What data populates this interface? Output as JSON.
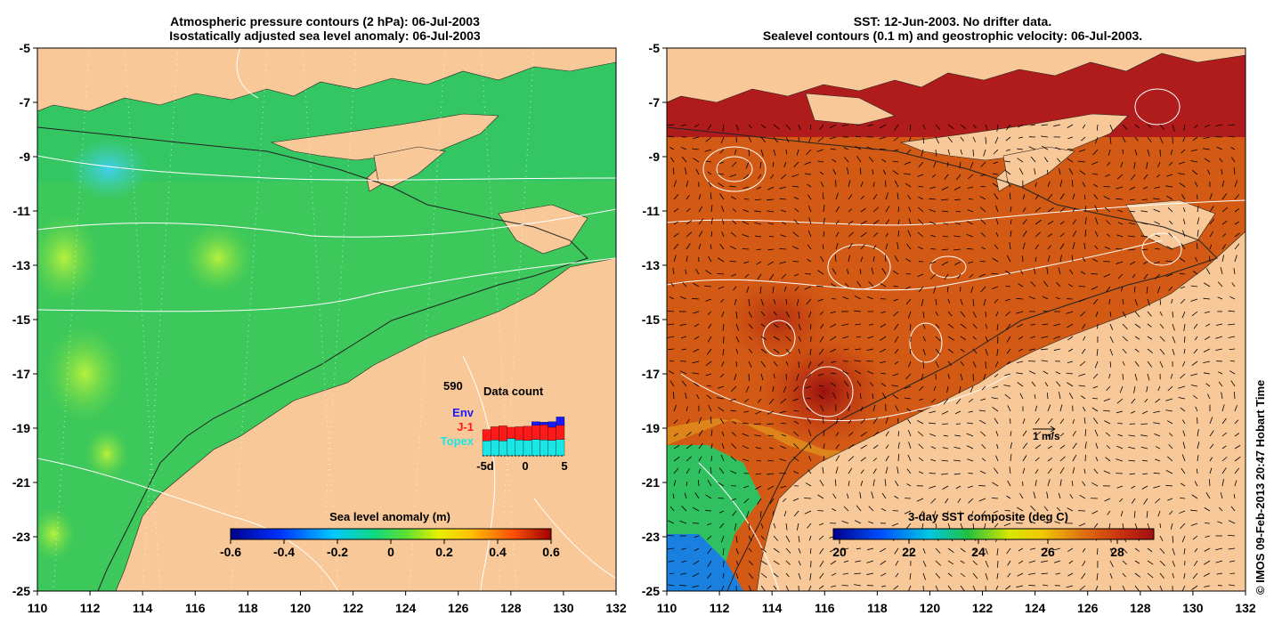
{
  "left_panel": {
    "title_line1": "Atmospheric pressure contours (2 hPa): 06-Jul-2003",
    "title_line2": "Isostatically adjusted sea level anomaly: 06-Jul-2003",
    "x_ticks": [
      "110",
      "112",
      "114",
      "116",
      "118",
      "120",
      "122",
      "124",
      "126",
      "128",
      "130",
      "132"
    ],
    "y_ticks": [
      "-5",
      "-7",
      "-9",
      "-11",
      "-13",
      "-15",
      "-17",
      "-19",
      "-21",
      "-23",
      "-25"
    ],
    "colorbar": {
      "label": "Sea level anomaly (m)",
      "ticks": [
        "-0.6",
        "-0.4",
        "-0.2",
        "0",
        "0.2",
        "0.4",
        "0.6"
      ]
    },
    "data_count": {
      "title": "Data count",
      "max_value": "590",
      "legend": [
        {
          "name": "Env",
          "color": "#1a1aff"
        },
        {
          "name": "J-1",
          "color": "#ff1a1a"
        },
        {
          "name": "Topex",
          "color": "#1ae6e6"
        }
      ],
      "x_ticks": [
        "-5d",
        "0",
        "5"
      ],
      "series": {
        "topex": [
          160,
          170,
          160,
          185,
          170,
          165,
          175,
          170,
          165,
          175
        ],
        "j1": [
          120,
          140,
          160,
          120,
          140,
          150,
          150,
          160,
          140,
          150
        ],
        "env": [
          0,
          0,
          0,
          0,
          0,
          0,
          40,
          30,
          60,
          90
        ]
      },
      "y_max": 590
    }
  },
  "right_panel": {
    "title_line1": "SST: 12-Jun-2003. No drifter data.",
    "title_line2": "Sealevel contours (0.1 m) and geostrophic velocity: 06-Jul-2003.",
    "x_ticks": [
      "110",
      "112",
      "114",
      "116",
      "118",
      "120",
      "122",
      "124",
      "126",
      "128",
      "130",
      "132"
    ],
    "y_ticks": [
      "-5",
      "-7",
      "-9",
      "-11",
      "-13",
      "-15",
      "-17",
      "-19",
      "-21",
      "-23",
      "-25"
    ],
    "colorbar": {
      "label": "3-day SST composite (deg C)",
      "ticks": [
        "20",
        "22",
        "24",
        "26",
        "28"
      ]
    },
    "scale_label": "1 m/s"
  },
  "credit": "© IMOS 09-Feb-2013 20:47 Hobart Time",
  "colors": {
    "land": "#f8c898",
    "ocean_sla": "#3cc85a",
    "ocean_sst": "#d25a14"
  }
}
